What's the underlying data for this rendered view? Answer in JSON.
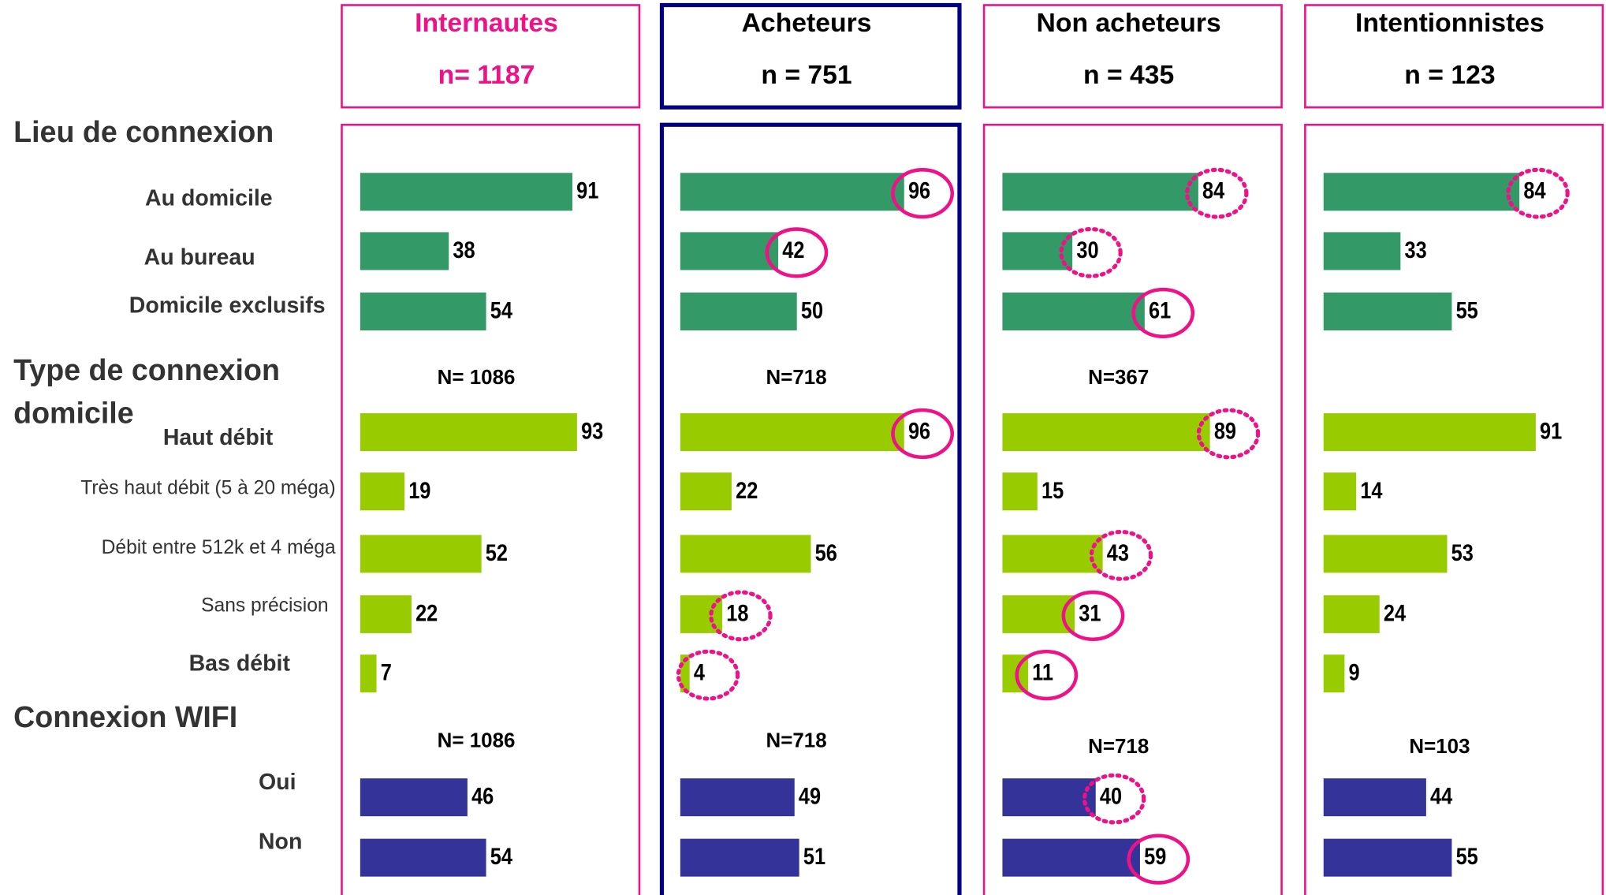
{
  "sections": [
    {
      "title_lines": [
        "Lieu de connexion"
      ],
      "rows": [
        {
          "label": "Au domicile",
          "bold": true
        },
        {
          "label": "Au bureau",
          "bold": true
        },
        {
          "label": "Domicile exclusifs",
          "bold": true
        }
      ],
      "color": "#339966"
    },
    {
      "title_lines": [
        "Type de connexion",
        "domicile"
      ],
      "rows": [
        {
          "label": "Haut débit",
          "bold": true
        },
        {
          "label": "Très haut débit (5 à 20 méga)",
          "bold": false
        },
        {
          "label": "Débit entre 512k et 4 méga",
          "bold": false
        },
        {
          "label": "Sans précision",
          "bold": false
        },
        {
          "label": "Bas débit",
          "bold": true
        }
      ],
      "color": "#99cc00"
    },
    {
      "title_lines": [
        "Connexion WIFI"
      ],
      "rows": [
        {
          "label": "Oui",
          "bold": true
        },
        {
          "label": "Non",
          "bold": true
        }
      ],
      "color": "#333399"
    }
  ],
  "chart_data": [
    {
      "type": "bar",
      "title": "Internautes",
      "subtitle": "n= 1187",
      "title_color": "#ee1188",
      "frame_color": "#ee1188",
      "notes": [
        null,
        "N= 1086",
        "N= 1086"
      ],
      "values": [
        [
          91,
          38,
          54
        ],
        [
          93,
          19,
          52,
          22,
          7
        ],
        [
          46,
          54
        ]
      ],
      "highlights": [
        [
          null,
          null,
          null
        ],
        [
          null,
          null,
          null,
          null,
          null
        ],
        [
          null,
          null
        ]
      ]
    },
    {
      "type": "bar",
      "title": "Acheteurs",
      "subtitle": "n = 751",
      "title_color": "#000000",
      "frame_color": "#000080",
      "notes": [
        null,
        "N=718",
        "N=718"
      ],
      "values": [
        [
          96,
          42,
          50
        ],
        [
          96,
          22,
          56,
          18,
          4
        ],
        [
          49,
          51
        ]
      ],
      "highlights": [
        [
          "solid",
          "solid",
          null
        ],
        [
          "solid",
          null,
          null,
          "dotted",
          "dotted"
        ],
        [
          null,
          null
        ]
      ]
    },
    {
      "type": "bar",
      "title": "Non acheteurs",
      "subtitle": "n = 435",
      "title_color": "#000000",
      "frame_color": "#ee1188",
      "notes": [
        null,
        "N=367",
        "N=718"
      ],
      "values": [
        [
          84,
          30,
          61
        ],
        [
          89,
          15,
          43,
          31,
          11
        ],
        [
          40,
          59
        ]
      ],
      "highlights": [
        [
          "dotted",
          "dotted",
          "solid"
        ],
        [
          "dotted",
          null,
          "dotted",
          "solid",
          "solid"
        ],
        [
          "dotted",
          "solid"
        ]
      ]
    },
    {
      "type": "bar",
      "title": "Intentionnistes",
      "subtitle": "n = 123",
      "title_color": "#000000",
      "frame_color": "#ee1188",
      "notes": [
        null,
        null,
        "N=103"
      ],
      "values": [
        [
          84,
          33,
          55
        ],
        [
          91,
          14,
          53,
          24,
          9
        ],
        [
          44,
          55
        ]
      ],
      "highlights": [
        [
          "dotted",
          null,
          null
        ],
        [
          null,
          null,
          null,
          null,
          null
        ],
        [
          null,
          null
        ]
      ]
    }
  ]
}
